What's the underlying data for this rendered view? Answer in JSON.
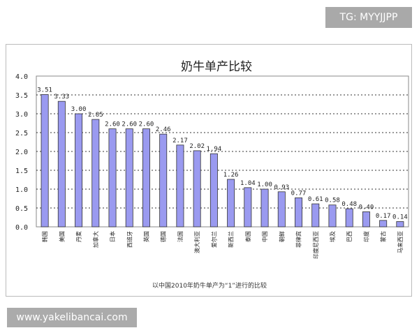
{
  "watermarks": {
    "top_right": "TG: MYYJJPP",
    "bottom_left": "www.yakelibancai.com"
  },
  "chart_data": {
    "type": "bar",
    "title": "奶牛单产比较",
    "caption": "以中国2010年奶牛单产为“1”进行的比较",
    "xlabel": "",
    "ylabel": "",
    "ylim": [
      0,
      4.0
    ],
    "yticks": [
      "0.0",
      "0.5",
      "1.0",
      "1.5",
      "2.0",
      "2.5",
      "3.0",
      "3.5",
      "4.0"
    ],
    "grid": true,
    "bar_color": "#9a9af0",
    "categories": [
      "韩国",
      "美国",
      "丹麦",
      "加拿大",
      "日本",
      "西班牙",
      "英国",
      "德国",
      "法国",
      "澳大利亚",
      "爱尔兰",
      "新西兰",
      "泰国",
      "中国",
      "朝鲜",
      "菲律宾",
      "印度尼西亚",
      "埃及",
      "巴西",
      "印度",
      "蒙古",
      "马来西亚"
    ],
    "values": [
      3.51,
      3.33,
      3.0,
      2.85,
      2.6,
      2.6,
      2.6,
      2.46,
      2.17,
      2.02,
      1.94,
      1.26,
      1.04,
      1.0,
      0.93,
      0.77,
      0.61,
      0.58,
      0.48,
      0.4,
      0.17,
      0.14
    ],
    "data_labels": [
      "3.51",
      "3.33",
      "3.00",
      "2.85",
      "2.60",
      "2.60",
      "2.60",
      "2.46",
      "2.17",
      "2.02",
      "1.94",
      "1.26",
      "1.04",
      "1.00",
      "0.93",
      "0.77",
      "0.61",
      "0.58",
      "0.48",
      "0.40",
      "0.17",
      "0.14"
    ]
  }
}
